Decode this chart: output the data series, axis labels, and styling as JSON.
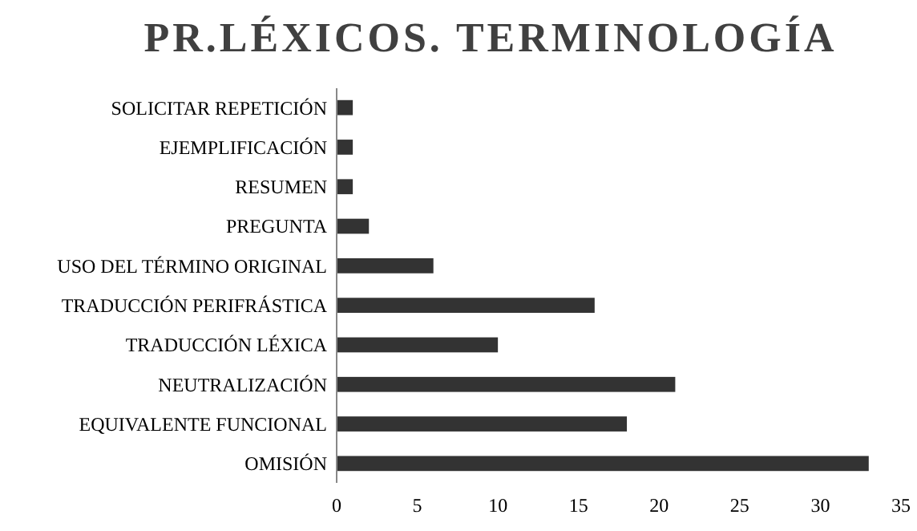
{
  "chart_data": {
    "type": "bar",
    "orientation": "horizontal",
    "title": "PR.LÉXICOS. TERMINOLOGÍA",
    "categories": [
      "SOLICITAR REPETICIÓN",
      "EJEMPLIFICACIÓN",
      "RESUMEN",
      "PREGUNTA",
      "USO DEL TÉRMINO ORIGINAL",
      "TRADUCCIÓN PERIFRÁSTICA",
      "TRADUCCIÓN LÉXICA",
      "NEUTRALIZACIÓN",
      "EQUIVALENTE FUNCIONAL",
      "OMISIÓN"
    ],
    "values": [
      1,
      1,
      1,
      2,
      6,
      16,
      10,
      21,
      18,
      33
    ],
    "color": "#333333",
    "xlim": [
      0,
      35
    ],
    "xticks": [
      0,
      5,
      10,
      15,
      20,
      25,
      30,
      35
    ],
    "grid": false
  }
}
